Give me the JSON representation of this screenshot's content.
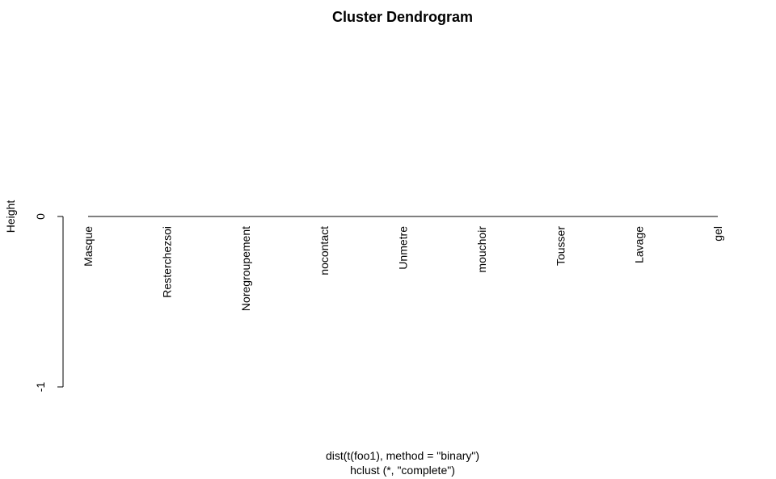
{
  "chart_data": {
    "type": "dendrogram",
    "title": "Cluster Dendrogram",
    "xlabel_line1": "dist(t(foo1), method = \"binary\")",
    "xlabel_line2": "hclust (*, \"complete\")",
    "ylabel": "Height",
    "yticks": [
      0,
      -1
    ],
    "ylim": [
      -1,
      0
    ],
    "leaves": [
      "Masque",
      "Resterchezsoi",
      "Noregroupement",
      "nocontact",
      "Unmetre",
      "mouchoir",
      "Tousser",
      "Lavage",
      "gel"
    ],
    "merge_height": 0
  }
}
